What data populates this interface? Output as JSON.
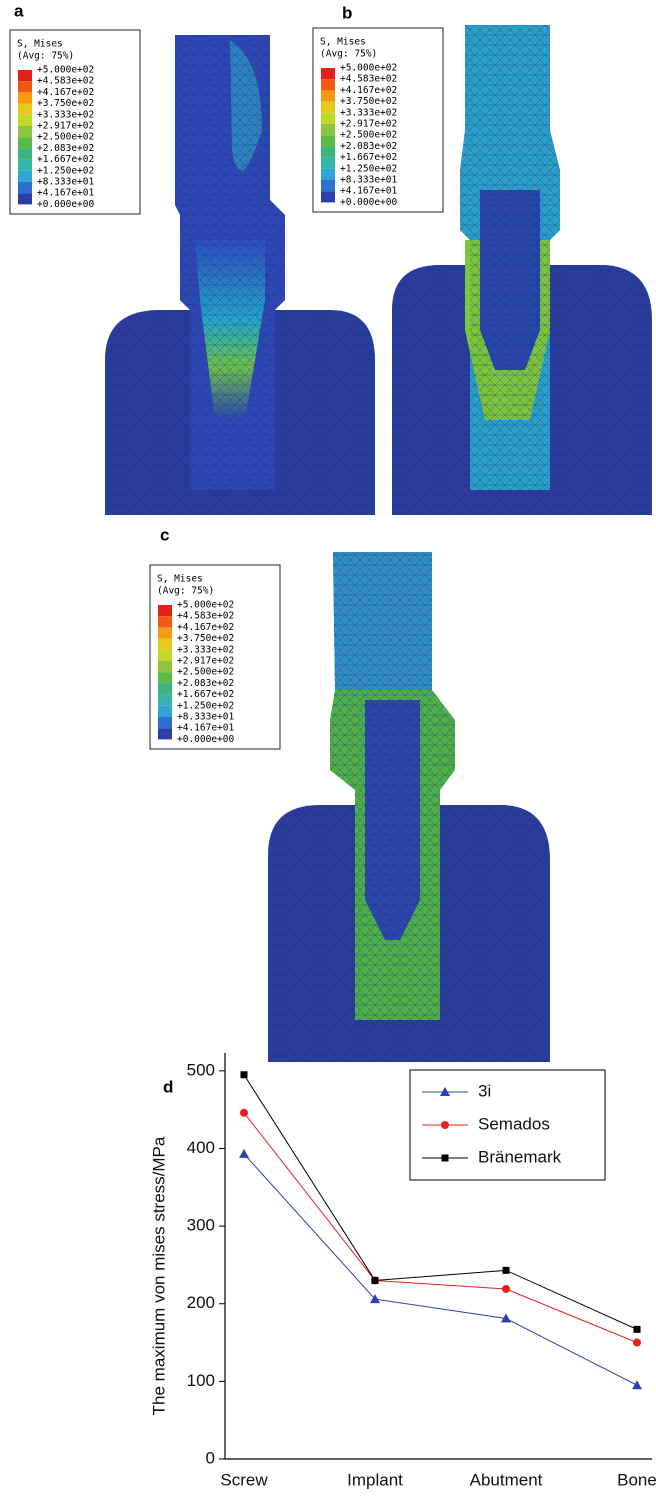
{
  "panels": [
    {
      "label": "a",
      "legend": {
        "title": "S, Mises",
        "subtitle": "(Avg: 75%)",
        "levels": [
          "+5.000e+02",
          "+4.583e+02",
          "+4.167e+02",
          "+3.750e+02",
          "+3.333e+02",
          "+2.917e+02",
          "+2.500e+02",
          "+2.083e+02",
          "+1.667e+02",
          "+1.250e+02",
          "+8.333e+01",
          "+4.167e+01",
          "+0.000e+00"
        ]
      }
    },
    {
      "label": "b",
      "legend": {
        "title": "S, Mises",
        "subtitle": "(Avg: 75%)",
        "levels": [
          "+5.000e+02",
          "+4.583e+02",
          "+4.167e+02",
          "+3.750e+02",
          "+3.333e+02",
          "+2.917e+02",
          "+2.500e+02",
          "+2.083e+02",
          "+1.667e+02",
          "+1.250e+02",
          "+8.333e+01",
          "+4.167e+01",
          "+0.000e+00"
        ]
      }
    },
    {
      "label": "c",
      "legend": {
        "title": "S, Mises",
        "subtitle": "(Avg: 75%)",
        "levels": [
          "+5.000e+02",
          "+4.583e+02",
          "+4.167e+02",
          "+3.750e+02",
          "+3.333e+02",
          "+2.917e+02",
          "+2.500e+02",
          "+2.083e+02",
          "+1.667e+02",
          "+1.250e+02",
          "+8.333e+01",
          "+4.167e+01",
          "+0.000e+00"
        ]
      }
    }
  ],
  "chart_data": {
    "type": "line",
    "label": "d",
    "y_label": "The maximum von mises stress/MPa",
    "categories": [
      "Screw",
      "Implant",
      "Abutment",
      "Bone"
    ],
    "series": [
      {
        "name": "3i",
        "color": "#2f3fb0",
        "marker": "triangle",
        "values": [
          393,
          206,
          181,
          95
        ]
      },
      {
        "name": "Semados",
        "color": "#e8201c",
        "marker": "circle",
        "values": [
          446,
          230,
          219,
          150
        ]
      },
      {
        "name": "Bränemark",
        "color": "#000000",
        "marker": "square",
        "values": [
          495,
          230,
          243,
          167
        ]
      }
    ],
    "ylim": [
      0,
      523
    ],
    "yticks": [
      0,
      100,
      200,
      300,
      400,
      500
    ],
    "legend": "upper right"
  }
}
